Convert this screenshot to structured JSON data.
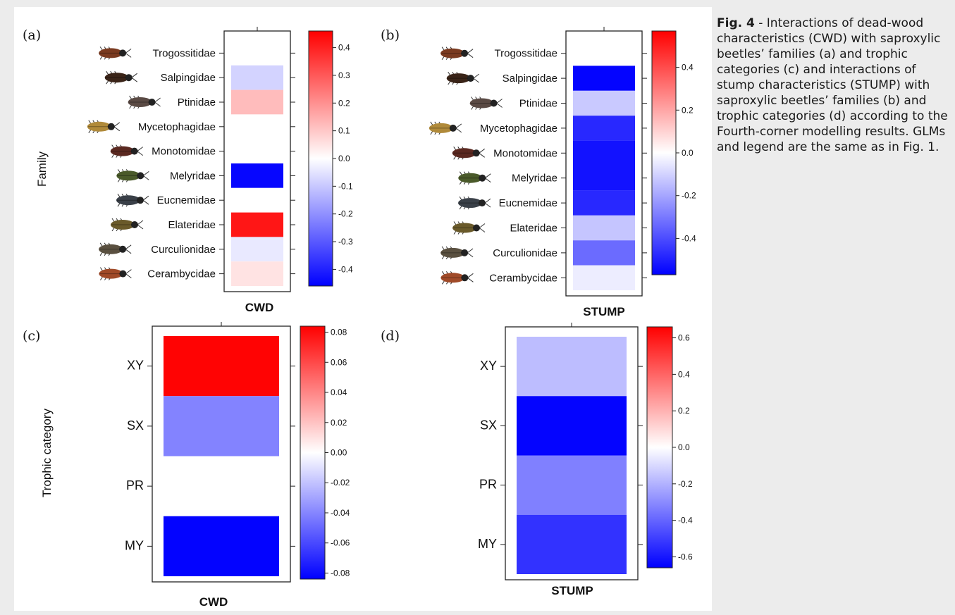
{
  "caption": {
    "fig": "Fig. 4",
    "text": " - Interactions of dead-wood characteristics (CWD) with saproxylic beetles’ families (a) and trophic categories (c) and interactions of stump characteristics (STUMP) with saproxylic beetles’ families (b) and trophic categories (d) according to the Fourth-corner modelling results. GLMs and legend are the same as in Fig. 1."
  },
  "colors": {
    "negative": "#0000ff",
    "zero": "#ffffff",
    "positive": "#ff0000"
  },
  "chart_data": [
    {
      "panel": "(a)",
      "type": "heatmap",
      "xlabel": "CWD",
      "ylabel": "Family",
      "categories": [
        "Trogossitidae",
        "Salpingidae",
        "Ptinidae",
        "Mycetophagidae",
        "Monotomidae",
        "Melyridae",
        "Eucnemidae",
        "Elateridae",
        "Curculionidae",
        "Cerambycidae"
      ],
      "values": [
        0.0,
        -0.08,
        0.12,
        0.0,
        0.0,
        -0.45,
        0.0,
        0.42,
        -0.04,
        0.05
      ],
      "colorbar_range": [
        -0.46,
        0.46
      ],
      "colorbar_ticks": [
        "0.4",
        "0.3",
        "0.2",
        "0.1",
        "0.0",
        "-0.1",
        "-0.2",
        "-0.3",
        "-0.4"
      ]
    },
    {
      "panel": "(b)",
      "type": "heatmap",
      "xlabel": "STUMP",
      "ylabel": "",
      "categories": [
        "Trogossitidae",
        "Salpingidae",
        "Ptinidae",
        "Mycetophagidae",
        "Monotomidae",
        "Melyridae",
        "Eucnemidae",
        "Elateridae",
        "Curculionidae",
        "Cerambycidae"
      ],
      "values": [
        0.0,
        -0.56,
        -0.12,
        -0.48,
        -0.53,
        -0.53,
        -0.48,
        -0.13,
        -0.33,
        -0.04
      ],
      "colorbar_range": [
        -0.57,
        0.57
      ],
      "colorbar_ticks": [
        "0.4",
        "0.2",
        "0.0",
        "-0.2",
        "-0.4"
      ]
    },
    {
      "panel": "(c)",
      "type": "heatmap",
      "xlabel": "CWD",
      "ylabel": "Trophic category",
      "categories": [
        "XY",
        "SX",
        "PR",
        "MY"
      ],
      "values": [
        0.083,
        -0.041,
        0.0,
        -0.083
      ],
      "colorbar_range": [
        -0.084,
        0.084
      ],
      "colorbar_ticks": [
        "0.08",
        "0.06",
        "0.04",
        "0.02",
        "0.00",
        "-0.02",
        "-0.04",
        "-0.06",
        "-0.08"
      ]
    },
    {
      "panel": "(d)",
      "type": "heatmap",
      "xlabel": "STUMP",
      "ylabel": "",
      "categories": [
        "XY",
        "SX",
        "PR",
        "MY"
      ],
      "values": [
        -0.17,
        -0.65,
        -0.33,
        -0.53
      ],
      "colorbar_range": [
        -0.66,
        0.66
      ],
      "colorbar_ticks": [
        "0.6",
        "0.4",
        "0.2",
        "0.0",
        "-0.2",
        "-0.4",
        "-0.6"
      ]
    }
  ]
}
